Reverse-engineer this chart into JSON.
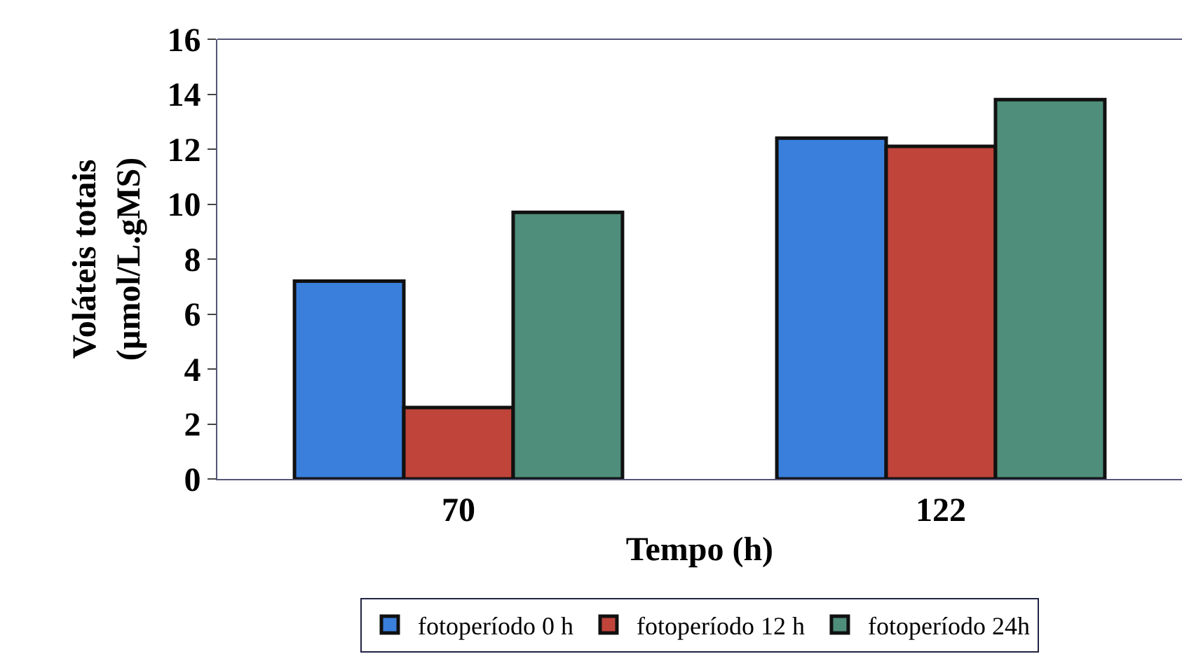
{
  "chart_data": {
    "type": "bar",
    "xlabel": "Tempo (h)",
    "ylabel": "Voláteis totais\n(µmol/L.gMS)",
    "categories": [
      "70",
      "122"
    ],
    "series": [
      {
        "name": "fotoperíodo 0 h",
        "color": "#3a7fdc",
        "values": [
          7.2,
          12.4
        ]
      },
      {
        "name": "fotoperíodo 12 h",
        "color": "#c0443a",
        "values": [
          2.6,
          12.1
        ]
      },
      {
        "name": "fotoperíodo 24h",
        "color": "#4e8e7a",
        "values": [
          9.7,
          13.8
        ]
      }
    ],
    "ylim": [
      0,
      16
    ],
    "yticks": [
      0,
      2,
      4,
      6,
      8,
      10,
      12,
      14,
      16
    ],
    "legend": "bottom"
  }
}
